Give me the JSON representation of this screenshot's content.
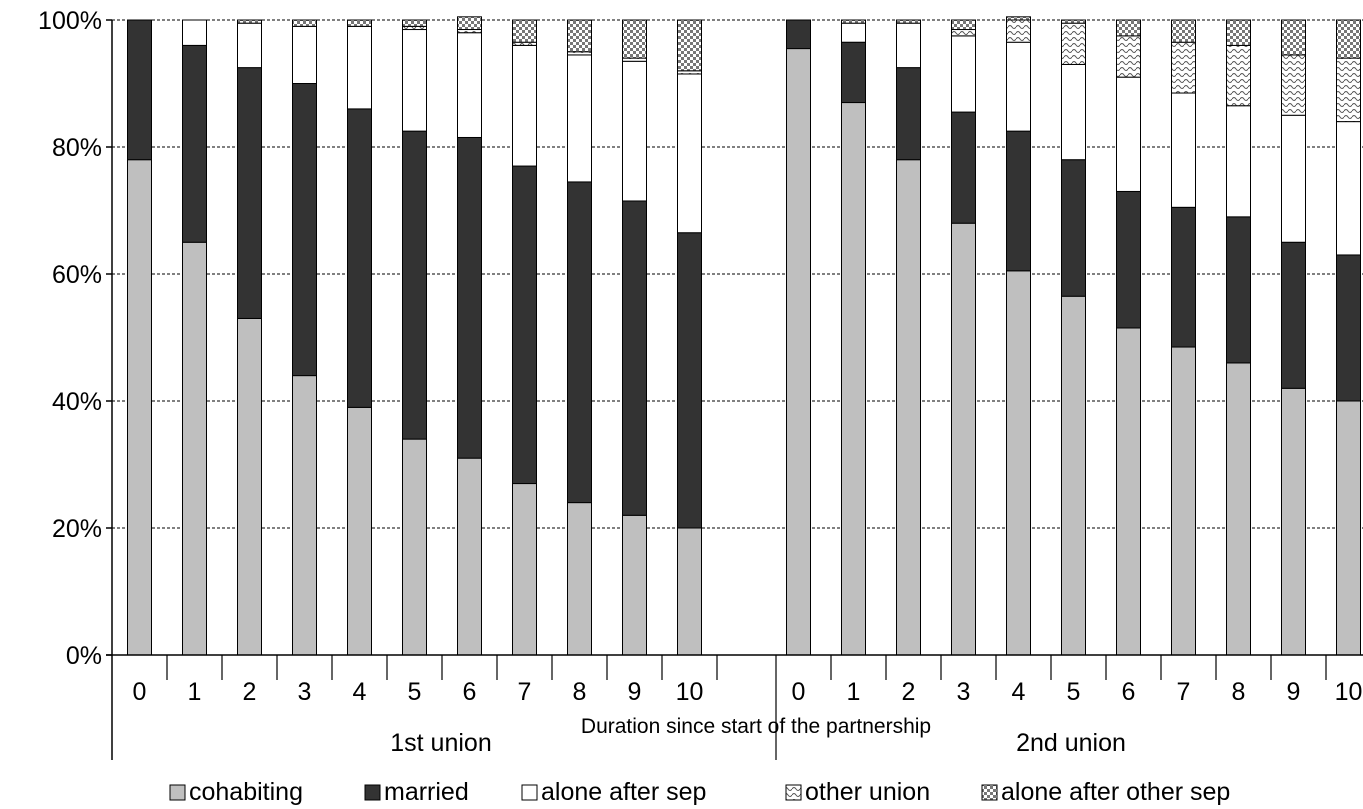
{
  "colors": {
    "cohabiting": "#bfbfbf",
    "married": "#333333",
    "alone_after_sep": "#ffffff",
    "other_union": "#d9d9d9",
    "alone_after_other_sep": "#ffffff",
    "gridline": "#000000",
    "axis": "#000000"
  },
  "chart_data": {
    "type": "bar",
    "stacked": true,
    "percent": true,
    "xlabel": "Duration since start of the partnership",
    "ylabel": "",
    "ylim": [
      0,
      100
    ],
    "yticks": [
      "0%",
      "20%",
      "40%",
      "60%",
      "80%",
      "100%"
    ],
    "grid": true,
    "legend_position": "bottom",
    "groups": [
      {
        "label": "1st union",
        "categories": [
          "0",
          "1",
          "2",
          "3",
          "4",
          "5",
          "6",
          "7",
          "8",
          "9",
          "10"
        ],
        "series": [
          {
            "name": "cohabiting",
            "values": [
              78,
              65,
              53,
              44,
              39,
              34,
              31,
              27,
              24,
              22,
              20
            ]
          },
          {
            "name": "married",
            "values": [
              22,
              31,
              39.5,
              46,
              47,
              48.5,
              50.5,
              50,
              50.5,
              49.5,
              46.5
            ]
          },
          {
            "name": "alone after sep",
            "values": [
              0,
              4,
              7,
              9,
              13,
              16,
              16.5,
              19,
              20,
              22,
              25
            ]
          },
          {
            "name": "other union",
            "values": [
              0,
              0,
              0,
              0,
              0,
              0.5,
              0.5,
              0.5,
              0.5,
              0.5,
              0.5
            ]
          },
          {
            "name": "alone after other  sep",
            "values": [
              0,
              0,
              0.5,
              1,
              1,
              1,
              2,
              3.5,
              5,
              6,
              8
            ]
          }
        ]
      },
      {
        "label": "2nd union",
        "categories": [
          "0",
          "1",
          "2",
          "3",
          "4",
          "5",
          "6",
          "7",
          "8",
          "9",
          "10"
        ],
        "series": [
          {
            "name": "cohabiting",
            "values": [
              95.5,
              87,
              78,
              68,
              60.5,
              56.5,
              51.5,
              48.5,
              46,
              42,
              40
            ]
          },
          {
            "name": "married",
            "values": [
              4.5,
              9.5,
              14.5,
              17.5,
              22,
              21.5,
              21.5,
              22,
              23,
              23,
              23
            ]
          },
          {
            "name": "alone after sep",
            "values": [
              0,
              3,
              7,
              12,
              14,
              15,
              18,
              18,
              17.5,
              20,
              21
            ]
          },
          {
            "name": "other union",
            "values": [
              0,
              0,
              0,
              1,
              3.5,
              6.5,
              6.5,
              8,
              9.5,
              9.5,
              10
            ]
          },
          {
            "name": "alone after other  sep",
            "values": [
              0,
              0.5,
              0.5,
              1.5,
              0.5,
              0.5,
              2.5,
              3.5,
              4,
              5.5,
              6
            ]
          }
        ]
      }
    ]
  }
}
